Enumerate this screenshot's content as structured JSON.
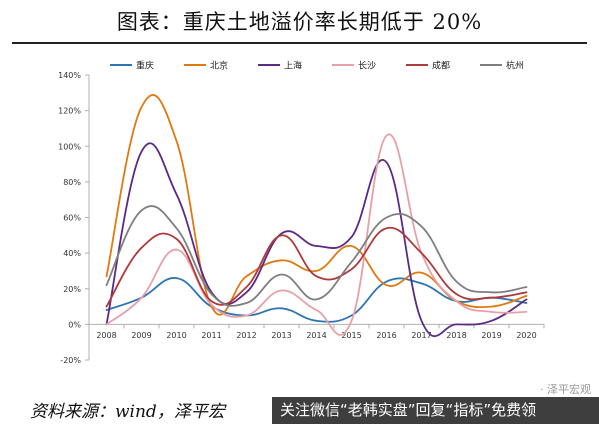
{
  "title": "图表：重庆土地溢价率长期低于 20%",
  "source": "资料来源：wind，泽平宏",
  "overlay_text": "关注微信“老韩实盘”回复“指标”免费领",
  "watermark": "· 泽平宏观",
  "chart_data": {
    "type": "line",
    "title": "图表：重庆土地溢价率长期低于 20%",
    "xlabel": "",
    "ylabel": "",
    "categories": [
      "2008",
      "2009",
      "2010",
      "2011",
      "2012",
      "2013",
      "2014",
      "2015",
      "2016",
      "2017",
      "2018",
      "2019",
      "2020"
    ],
    "ylim": [
      -0.2,
      1.4
    ],
    "yticks": [
      -0.2,
      0,
      0.2,
      0.4,
      0.6,
      0.8,
      1.0,
      1.2,
      1.4
    ],
    "ytick_labels": [
      "-20%",
      "0%",
      "20%",
      "40%",
      "60%",
      "80%",
      "100%",
      "120%",
      "140%"
    ],
    "grid": false,
    "smooth": true,
    "legend_position": "top",
    "series": [
      {
        "name": "重庆",
        "color": "#2e75b6",
        "values": [
          0.08,
          0.15,
          0.26,
          0.1,
          0.05,
          0.09,
          0.02,
          0.05,
          0.24,
          0.23,
          0.13,
          0.15,
          0.12
        ]
      },
      {
        "name": "北京",
        "color": "#e07a10",
        "values": [
          0.27,
          1.22,
          1.03,
          0.1,
          0.27,
          0.36,
          0.3,
          0.44,
          0.22,
          0.29,
          0.13,
          0.1,
          0.16
        ]
      },
      {
        "name": "上海",
        "color": "#5b2a86",
        "values": [
          0.0,
          0.97,
          0.73,
          0.18,
          0.18,
          0.51,
          0.44,
          0.49,
          0.91,
          0.02,
          0.0,
          0.02,
          0.14
        ]
      },
      {
        "name": "长沙",
        "color": "#e8a0a8",
        "values": [
          0.0,
          0.15,
          0.42,
          0.11,
          0.05,
          0.19,
          0.08,
          0.02,
          1.06,
          0.4,
          0.13,
          0.07,
          0.07
        ]
      },
      {
        "name": "成都",
        "color": "#b03a3a",
        "values": [
          0.1,
          0.43,
          0.48,
          0.13,
          0.21,
          0.5,
          0.27,
          0.31,
          0.54,
          0.4,
          0.17,
          0.15,
          0.18
        ]
      },
      {
        "name": "杭州",
        "color": "#7f7f7f",
        "values": [
          0.22,
          0.64,
          0.54,
          0.17,
          0.12,
          0.28,
          0.14,
          0.35,
          0.6,
          0.55,
          0.24,
          0.18,
          0.21
        ]
      }
    ]
  }
}
